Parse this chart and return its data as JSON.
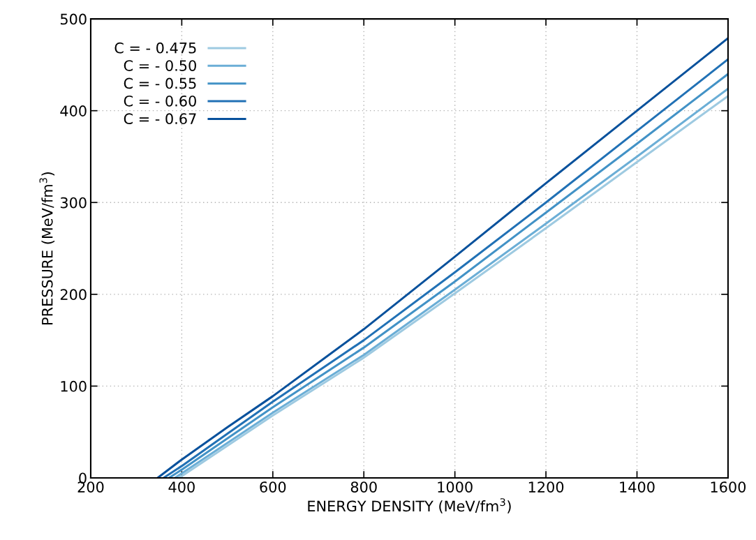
{
  "chart_data": {
    "type": "line",
    "xlabel": "ENERGY DENSITY (MeV/fm$^{3}$)",
    "ylabel": "PRESSURE (MeV/fm$^{3}$)",
    "xlim": [
      200,
      1600
    ],
    "xticks": [
      200,
      400,
      600,
      800,
      1000,
      1200,
      1400,
      1600
    ],
    "ylim": [
      0,
      500
    ],
    "yticks": [
      0,
      100,
      200,
      300,
      400,
      500
    ],
    "grid": true,
    "legend": "top left",
    "line_style": "solid",
    "marker": "none",
    "series": [
      {
        "name": "C = - 0.475",
        "color": "#9ecae1",
        "x": [
          393,
          400,
          500,
          600,
          800,
          1000,
          1200,
          1400,
          1600
        ],
        "values": [
          0,
          2,
          35,
          68,
          131,
          201,
          272,
          344,
          416
        ]
      },
      {
        "name": "C = - 0.50",
        "color": "#6baed6",
        "x": [
          385,
          400,
          500,
          600,
          800,
          1000,
          1200,
          1400,
          1600
        ],
        "values": [
          0,
          5,
          38,
          71,
          134,
          205,
          277,
          350,
          424
        ]
      },
      {
        "name": "C = - 0.55",
        "color": "#4292c6",
        "x": [
          372,
          400,
          500,
          600,
          800,
          1000,
          1200,
          1400,
          1600
        ],
        "values": [
          0,
          9,
          43,
          77,
          142,
          214,
          289,
          364,
          440
        ]
      },
      {
        "name": "C = - 0.60",
        "color": "#2171b5",
        "x": [
          360,
          400,
          500,
          600,
          800,
          1000,
          1200,
          1400,
          1600
        ],
        "values": [
          0,
          13,
          48,
          83,
          150,
          224,
          300,
          378,
          456
        ]
      },
      {
        "name": "C = - 0.67",
        "color": "#08519c",
        "x": [
          347,
          400,
          500,
          600,
          800,
          1000,
          1200,
          1400,
          1600
        ],
        "values": [
          0,
          20,
          55,
          89,
          162,
          241,
          321,
          400,
          479
        ]
      }
    ]
  }
}
